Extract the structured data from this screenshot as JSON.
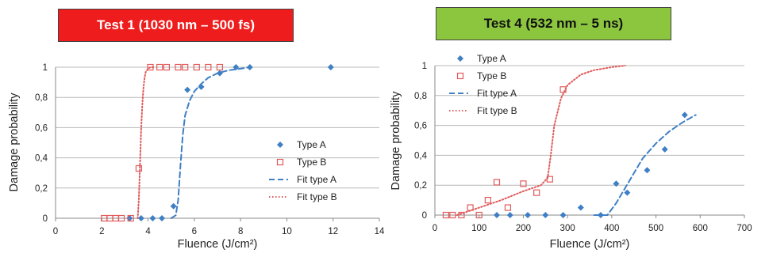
{
  "badges": [
    {
      "label": "Test 1 (1030 nm – 500 fs)",
      "color": "#ee1c1c"
    },
    {
      "label": "Test 4 (532 nm – 5 ns)",
      "color": "#8cc63f"
    }
  ],
  "chart_data": [
    {
      "type": "scatter",
      "title": "Test 1 (1030 nm – 500 fs)",
      "xlabel": "Fluence (J/cm²)",
      "ylabel": "Damage probability",
      "xlim": [
        0,
        14
      ],
      "ylim": [
        0,
        1
      ],
      "xticks": [
        "0",
        "2",
        "4",
        "6",
        "8",
        "10",
        "12",
        "14"
      ],
      "yticks": [
        "0",
        "0,2",
        "0,4",
        "0,6",
        "0,8",
        "1"
      ],
      "grid": "horizontal",
      "legend_position": "bottom-right",
      "series": [
        {
          "name": "Type A",
          "kind": "points",
          "marker": "diamond",
          "color": "#3f7fc4",
          "x": [
            3.2,
            3.7,
            4.2,
            4.6,
            5.1,
            5.7,
            6.3,
            7.1,
            7.8,
            8.4,
            11.9
          ],
          "y": [
            0,
            0,
            0,
            0,
            0.08,
            0.85,
            0.87,
            0.96,
            1,
            1,
            1
          ]
        },
        {
          "name": "Type B",
          "kind": "points",
          "marker": "square-open",
          "color": "#e15b5b",
          "x": [
            2.1,
            2.35,
            2.6,
            2.85,
            3.25,
            3.6,
            4.1,
            4.5,
            4.8,
            5.3,
            5.6,
            6.1,
            6.6,
            7.1
          ],
          "y": [
            0,
            0,
            0,
            0,
            0,
            0.33,
            1,
            1,
            1,
            1,
            1,
            1,
            1,
            1
          ]
        },
        {
          "name": "Fit type A",
          "kind": "line",
          "dash": "dashed",
          "color": "#3f7fc4",
          "x": [
            5.0,
            5.2,
            5.3,
            5.4,
            5.5,
            5.6,
            5.8,
            6.0,
            6.3,
            6.6,
            7.0,
            7.5,
            8.0,
            8.4
          ],
          "y": [
            0,
            0.02,
            0.12,
            0.35,
            0.55,
            0.68,
            0.78,
            0.84,
            0.89,
            0.93,
            0.96,
            0.98,
            0.99,
            1
          ]
        },
        {
          "name": "Fit type B",
          "kind": "line",
          "dash": "dotted",
          "color": "#e15b5b",
          "x": [
            3.55,
            3.6,
            3.65,
            3.7,
            3.75,
            3.8,
            3.85,
            3.9,
            4.0,
            4.1,
            4.3
          ],
          "y": [
            0,
            0.12,
            0.35,
            0.58,
            0.75,
            0.86,
            0.93,
            0.97,
            0.99,
            1,
            1
          ]
        }
      ]
    },
    {
      "type": "scatter",
      "title": "Test 4 (532 nm – 5 ns)",
      "xlabel": "Fluence (J/cm²)",
      "ylabel": "Damage probability",
      "xlim": [
        0,
        700
      ],
      "ylim": [
        0,
        1
      ],
      "xticks": [
        "0",
        "100",
        "200",
        "300",
        "400",
        "500",
        "600",
        "700"
      ],
      "yticks": [
        "0",
        "0,2",
        "0,4",
        "0,6",
        "0,8",
        "1"
      ],
      "grid": "horizontal",
      "legend_position": "top-left",
      "series": [
        {
          "name": "Type A",
          "kind": "points",
          "marker": "diamond",
          "color": "#3f7fc4",
          "x": [
            140,
            170,
            210,
            250,
            290,
            330,
            375,
            410,
            435,
            480,
            520,
            565
          ],
          "y": [
            0,
            0,
            0,
            0,
            0,
            0.05,
            0,
            0.21,
            0.15,
            0.3,
            0.44,
            0.67
          ]
        },
        {
          "name": "Type B",
          "kind": "points",
          "marker": "square-open",
          "color": "#e15b5b",
          "x": [
            25,
            40,
            60,
            80,
            100,
            120,
            140,
            165,
            200,
            230,
            260,
            290
          ],
          "y": [
            0,
            0,
            0,
            0.05,
            0,
            0.1,
            0.22,
            0.05,
            0.21,
            0.15,
            0.24,
            0.84
          ]
        },
        {
          "name": "Fit type A",
          "kind": "line",
          "dash": "dashed",
          "color": "#3f7fc4",
          "x": [
            360,
            390,
            410,
            430,
            450,
            470,
            500,
            530,
            560,
            590
          ],
          "y": [
            0,
            0,
            0.08,
            0.18,
            0.28,
            0.38,
            0.48,
            0.56,
            0.62,
            0.67
          ]
        },
        {
          "name": "Fit type B",
          "kind": "line",
          "dash": "dotted",
          "color": "#e15b5b",
          "x": [
            50,
            100,
            150,
            200,
            240,
            255,
            262,
            270,
            285,
            300,
            330,
            360,
            400,
            430
          ],
          "y": [
            0,
            0.05,
            0.1,
            0.16,
            0.2,
            0.25,
            0.4,
            0.6,
            0.78,
            0.87,
            0.94,
            0.97,
            0.99,
            1
          ]
        }
      ]
    }
  ]
}
